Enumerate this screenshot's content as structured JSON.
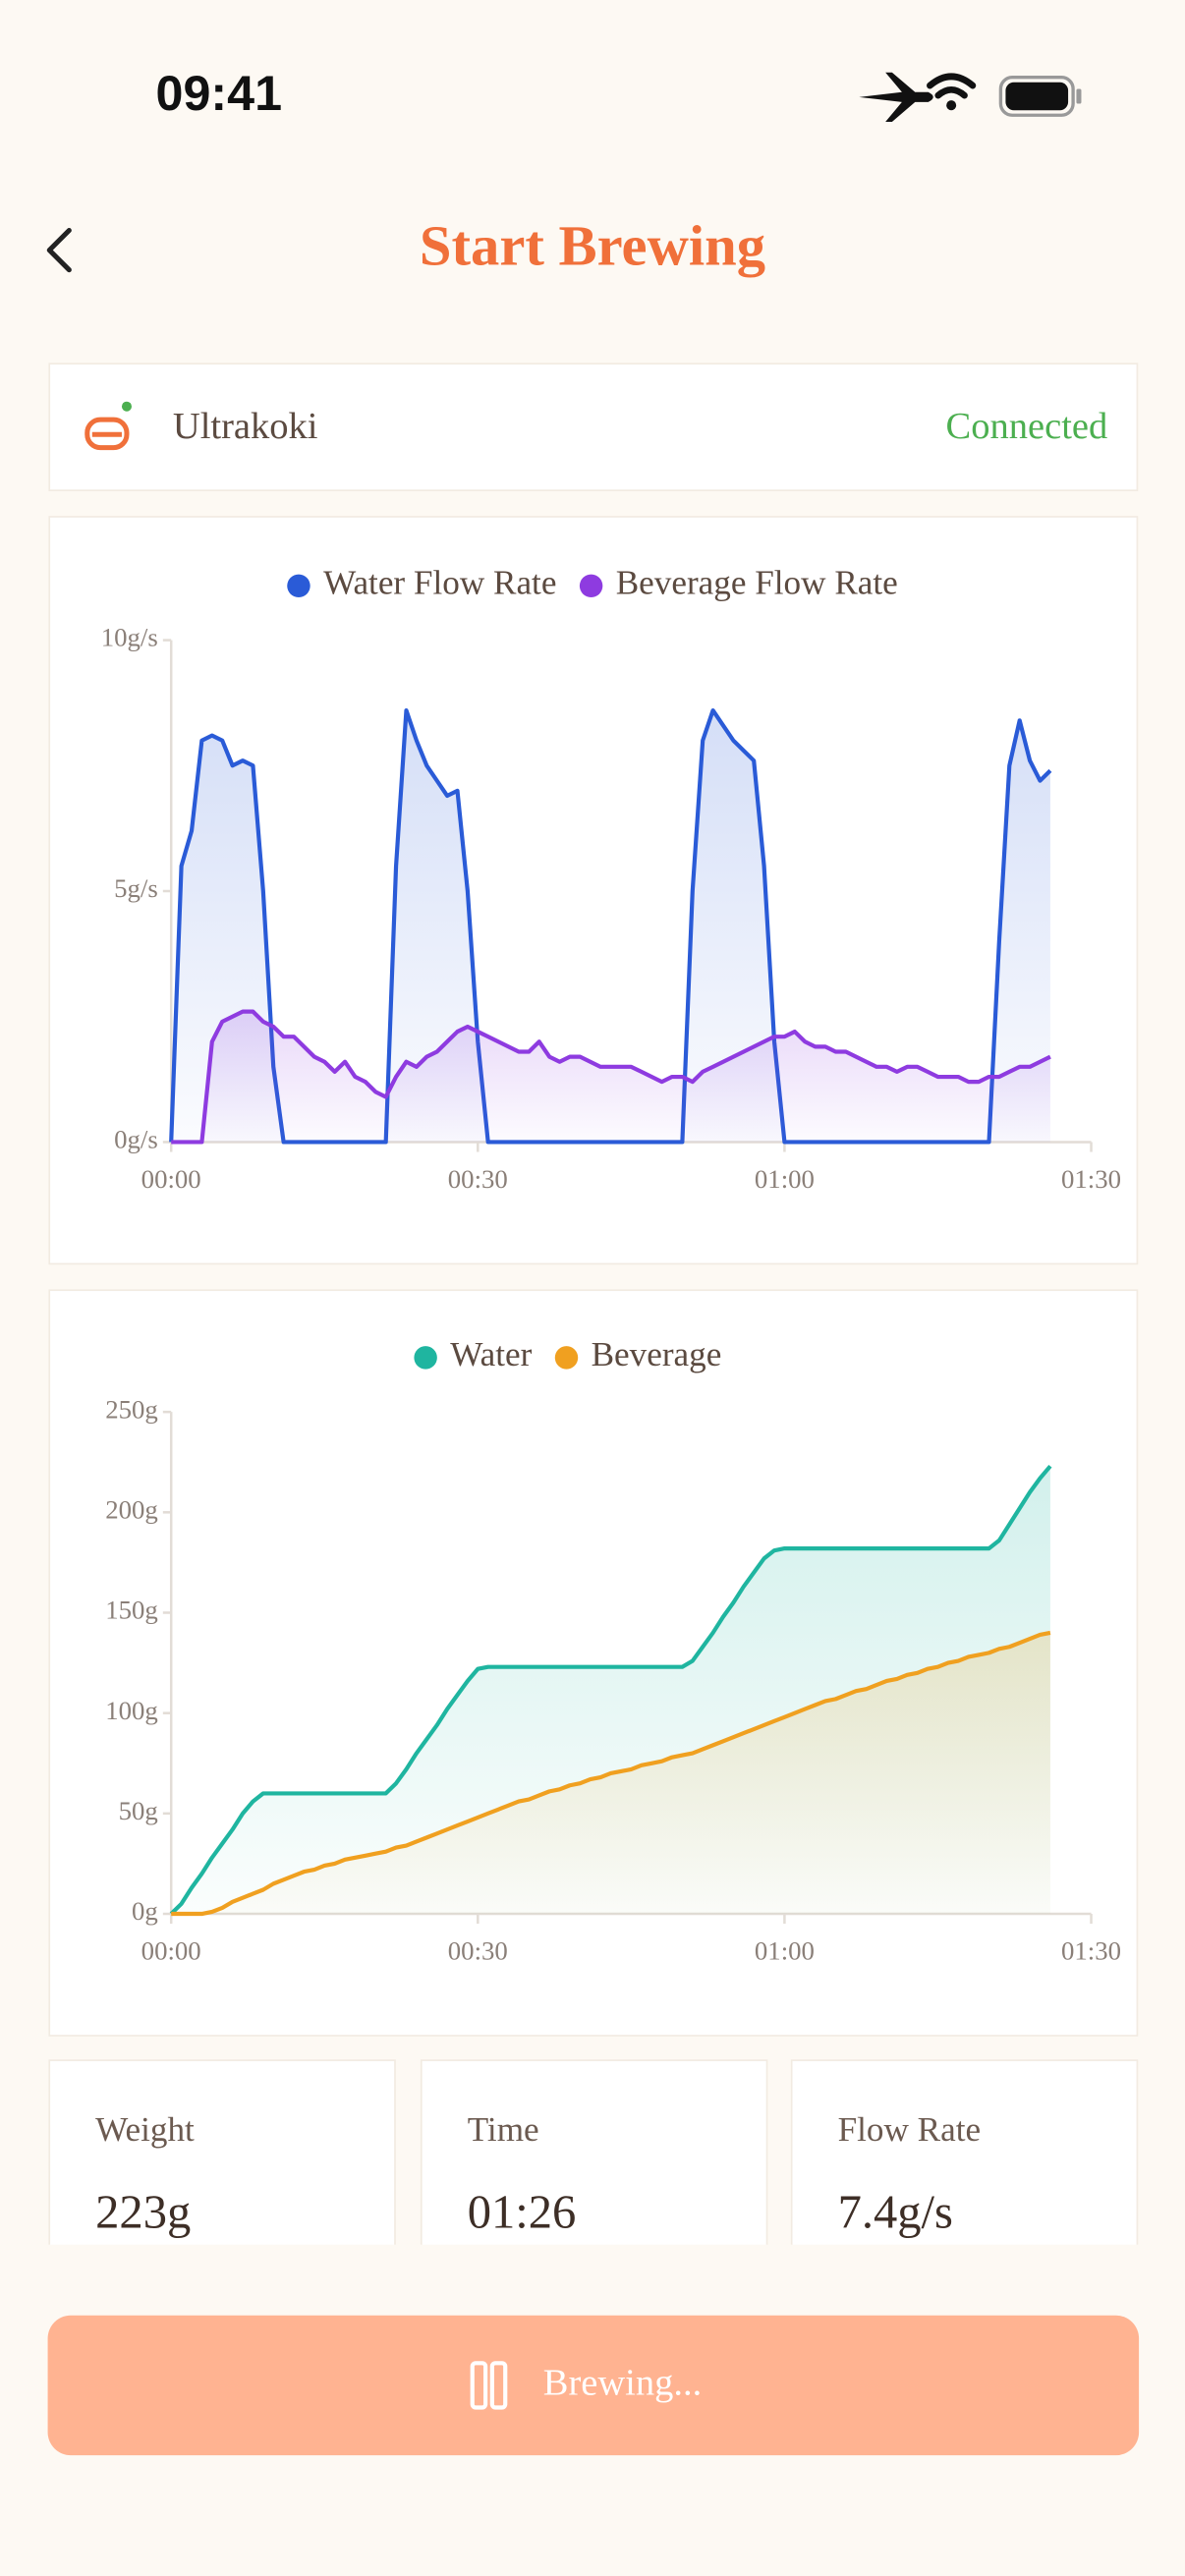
{
  "status_bar": {
    "time": "09:41"
  },
  "header": {
    "title": "Start Brewing"
  },
  "device": {
    "name": "Ultrakoki",
    "status": "Connected"
  },
  "chart_data": [
    {
      "type": "line",
      "area": true,
      "legend": "top",
      "x": [
        0,
        1,
        2,
        3,
        4,
        5,
        6,
        7,
        8,
        9,
        10,
        11,
        12,
        13,
        14,
        15,
        16,
        17,
        18,
        19,
        20,
        21,
        22,
        23,
        24,
        25,
        26,
        27,
        28,
        29,
        30,
        31,
        32,
        33,
        34,
        35,
        36,
        37,
        38,
        39,
        40,
        41,
        42,
        43,
        44,
        45,
        46,
        47,
        48,
        49,
        50,
        51,
        52,
        53,
        54,
        55,
        56,
        57,
        58,
        59,
        60,
        61,
        62,
        63,
        64,
        65,
        66,
        67,
        68,
        69,
        70,
        71,
        72,
        73,
        74,
        75,
        76,
        77,
        78,
        79,
        80,
        81,
        82,
        83,
        84,
        85,
        86
      ],
      "xlim": [
        0,
        90
      ],
      "xticks": [
        {
          "value": 0,
          "label": "00:00"
        },
        {
          "value": 30,
          "label": "00:30"
        },
        {
          "value": 60,
          "label": "01:00"
        },
        {
          "value": 90,
          "label": "01:30"
        }
      ],
      "ylim": [
        0,
        10
      ],
      "yticks": [
        {
          "value": 0,
          "label": "0g/s"
        },
        {
          "value": 5,
          "label": "5g/s"
        },
        {
          "value": 10,
          "label": "10g/s"
        }
      ],
      "series": [
        {
          "name": "Water Flow Rate",
          "color": "#2a5bd7",
          "values": [
            0,
            5.5,
            6.2,
            8.0,
            8.1,
            8.0,
            7.5,
            7.6,
            7.5,
            5.0,
            1.5,
            0,
            0,
            0,
            0,
            0,
            0,
            0,
            0,
            0,
            0,
            0,
            5.5,
            8.6,
            8.0,
            7.5,
            7.2,
            6.9,
            7.0,
            5.0,
            2.0,
            0,
            0,
            0,
            0,
            0,
            0,
            0,
            0,
            0,
            0,
            0,
            0,
            0,
            0,
            0,
            0,
            0,
            0,
            0,
            0,
            5.0,
            8.0,
            8.6,
            8.3,
            8.0,
            7.8,
            7.6,
            5.5,
            2.0,
            0,
            0,
            0,
            0,
            0,
            0,
            0,
            0,
            0,
            0,
            0,
            0,
            0,
            0,
            0,
            0,
            0,
            0,
            0,
            0,
            0,
            4.0,
            7.5,
            8.4,
            7.6,
            7.2,
            7.4
          ]
        },
        {
          "name": "Beverage Flow Rate",
          "color": "#8e3be0",
          "values": [
            0,
            0,
            0,
            0,
            2.0,
            2.4,
            2.5,
            2.6,
            2.6,
            2.4,
            2.3,
            2.1,
            2.1,
            1.9,
            1.7,
            1.6,
            1.4,
            1.6,
            1.3,
            1.2,
            1.0,
            0.9,
            1.3,
            1.6,
            1.5,
            1.7,
            1.8,
            2.0,
            2.2,
            2.3,
            2.2,
            2.1,
            2.0,
            1.9,
            1.8,
            1.8,
            2.0,
            1.7,
            1.6,
            1.7,
            1.7,
            1.6,
            1.5,
            1.5,
            1.5,
            1.5,
            1.4,
            1.3,
            1.2,
            1.3,
            1.3,
            1.2,
            1.4,
            1.5,
            1.6,
            1.7,
            1.8,
            1.9,
            2.0,
            2.1,
            2.1,
            2.2,
            2.0,
            1.9,
            1.9,
            1.8,
            1.8,
            1.7,
            1.6,
            1.5,
            1.5,
            1.4,
            1.5,
            1.5,
            1.4,
            1.3,
            1.3,
            1.3,
            1.2,
            1.2,
            1.3,
            1.3,
            1.4,
            1.5,
            1.5,
            1.6,
            1.7
          ]
        }
      ]
    },
    {
      "type": "line",
      "area": true,
      "legend": "top",
      "x": [
        0,
        1,
        2,
        3,
        4,
        5,
        6,
        7,
        8,
        9,
        10,
        11,
        12,
        13,
        14,
        15,
        16,
        17,
        18,
        19,
        20,
        21,
        22,
        23,
        24,
        25,
        26,
        27,
        28,
        29,
        30,
        31,
        32,
        33,
        34,
        35,
        36,
        37,
        38,
        39,
        40,
        41,
        42,
        43,
        44,
        45,
        46,
        47,
        48,
        49,
        50,
        51,
        52,
        53,
        54,
        55,
        56,
        57,
        58,
        59,
        60,
        61,
        62,
        63,
        64,
        65,
        66,
        67,
        68,
        69,
        70,
        71,
        72,
        73,
        74,
        75,
        76,
        77,
        78,
        79,
        80,
        81,
        82,
        83,
        84,
        85,
        86
      ],
      "xlim": [
        0,
        90
      ],
      "xticks": [
        {
          "value": 0,
          "label": "00:00"
        },
        {
          "value": 30,
          "label": "00:30"
        },
        {
          "value": 60,
          "label": "01:00"
        },
        {
          "value": 90,
          "label": "01:30"
        }
      ],
      "ylim": [
        0,
        250
      ],
      "yticks": [
        {
          "value": 0,
          "label": "0g"
        },
        {
          "value": 50,
          "label": "50g"
        },
        {
          "value": 100,
          "label": "100g"
        },
        {
          "value": 150,
          "label": "150g"
        },
        {
          "value": 200,
          "label": "200g"
        },
        {
          "value": 250,
          "label": "250g"
        }
      ],
      "series": [
        {
          "name": "Water",
          "color": "#1fb5a0",
          "values": [
            0,
            5,
            13,
            20,
            28,
            35,
            42,
            50,
            56,
            60,
            60,
            60,
            60,
            60,
            60,
            60,
            60,
            60,
            60,
            60,
            60,
            60,
            65,
            72,
            80,
            87,
            94,
            102,
            109,
            116,
            122,
            123,
            123,
            123,
            123,
            123,
            123,
            123,
            123,
            123,
            123,
            123,
            123,
            123,
            123,
            123,
            123,
            123,
            123,
            123,
            123,
            126,
            133,
            140,
            148,
            155,
            163,
            170,
            177,
            181,
            182,
            182,
            182,
            182,
            182,
            182,
            182,
            182,
            182,
            182,
            182,
            182,
            182,
            182,
            182,
            182,
            182,
            182,
            182,
            182,
            182,
            186,
            194,
            202,
            210,
            217,
            223
          ]
        },
        {
          "name": "Beverage",
          "color": "#f0a020",
          "values": [
            0,
            0,
            0,
            0,
            1,
            3,
            6,
            8,
            10,
            12,
            15,
            17,
            19,
            21,
            22,
            24,
            25,
            27,
            28,
            29,
            30,
            31,
            33,
            34,
            36,
            38,
            40,
            42,
            44,
            46,
            48,
            50,
            52,
            54,
            56,
            57,
            59,
            61,
            62,
            64,
            65,
            67,
            68,
            70,
            71,
            72,
            74,
            75,
            76,
            78,
            79,
            80,
            82,
            84,
            86,
            88,
            90,
            92,
            94,
            96,
            98,
            100,
            102,
            104,
            106,
            107,
            109,
            111,
            112,
            114,
            116,
            117,
            119,
            120,
            122,
            123,
            125,
            126,
            128,
            129,
            130,
            132,
            133,
            135,
            137,
            139,
            140
          ]
        }
      ]
    }
  ],
  "stats": [
    {
      "label": "Weight",
      "value": "223g"
    },
    {
      "label": "Time",
      "value": "01:26"
    },
    {
      "label": "Flow Rate",
      "value": "7.4g/s"
    }
  ],
  "button": {
    "label": "Brewing..."
  }
}
